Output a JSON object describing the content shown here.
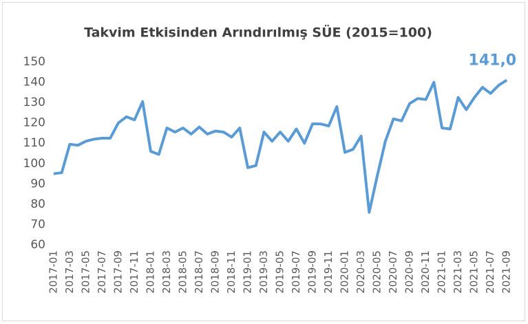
{
  "chart_data": {
    "type": "line",
    "title": "Takvim Etkisinden Arındırılmış SÜE (2015=100)",
    "categories": [
      "2017-01",
      null,
      "2017-03",
      null,
      "2017-05",
      null,
      "2017-07",
      null,
      "2017-09",
      null,
      "2017-11",
      null,
      "2018-01",
      null,
      "2018-03",
      null,
      "2018-05",
      null,
      "2018-07",
      null,
      "2018-09",
      null,
      "2018-11",
      null,
      "2019-01",
      null,
      "2019-03",
      null,
      "2019-05",
      null,
      "2019-07",
      null,
      "2019-09",
      null,
      "2019-11",
      null,
      "2020-01",
      null,
      "2020-03",
      null,
      "2020-05",
      null,
      "2020-07",
      null,
      "2020-09",
      null,
      "2020-11",
      null,
      "2021-01",
      null,
      "2021-03",
      null,
      "2021-05",
      null,
      "2021-07",
      null,
      "2021-09"
    ],
    "series": [
      {
        "name": "SÜE",
        "color": "#5b9bd5",
        "values": [
          95,
          95.5,
          109.5,
          109,
          111,
          112,
          112.5,
          112.5,
          120,
          123,
          121.5,
          130.5,
          106,
          104.5,
          117.5,
          115.5,
          117.5,
          114.5,
          118,
          114.5,
          116,
          115.5,
          113,
          117.5,
          98,
          99,
          115.5,
          111,
          115.5,
          111,
          117,
          110,
          119.5,
          119.5,
          118.5,
          128,
          105.5,
          107,
          113.5,
          76,
          94,
          111,
          122,
          121,
          129.5,
          132,
          131.5,
          140,
          117.5,
          117,
          132.5,
          126.5,
          132.5,
          137.5,
          134.5,
          138.5,
          141
        ],
        "value_labels": [
          null,
          null,
          null,
          null,
          null,
          null,
          null,
          null,
          null,
          null,
          null,
          null,
          null,
          null,
          null,
          null,
          null,
          null,
          null,
          null,
          null,
          null,
          null,
          null,
          null,
          null,
          null,
          null,
          null,
          null,
          null,
          null,
          null,
          null,
          null,
          null,
          null,
          null,
          null,
          null,
          null,
          null,
          null,
          null,
          null,
          null,
          null,
          null,
          null,
          null,
          null,
          null,
          null,
          null,
          null,
          null,
          "141,0"
        ]
      }
    ],
    "ylim": [
      60,
      150
    ],
    "yticks": [
      60,
      70,
      80,
      90,
      100,
      110,
      120,
      130,
      140,
      150
    ]
  }
}
